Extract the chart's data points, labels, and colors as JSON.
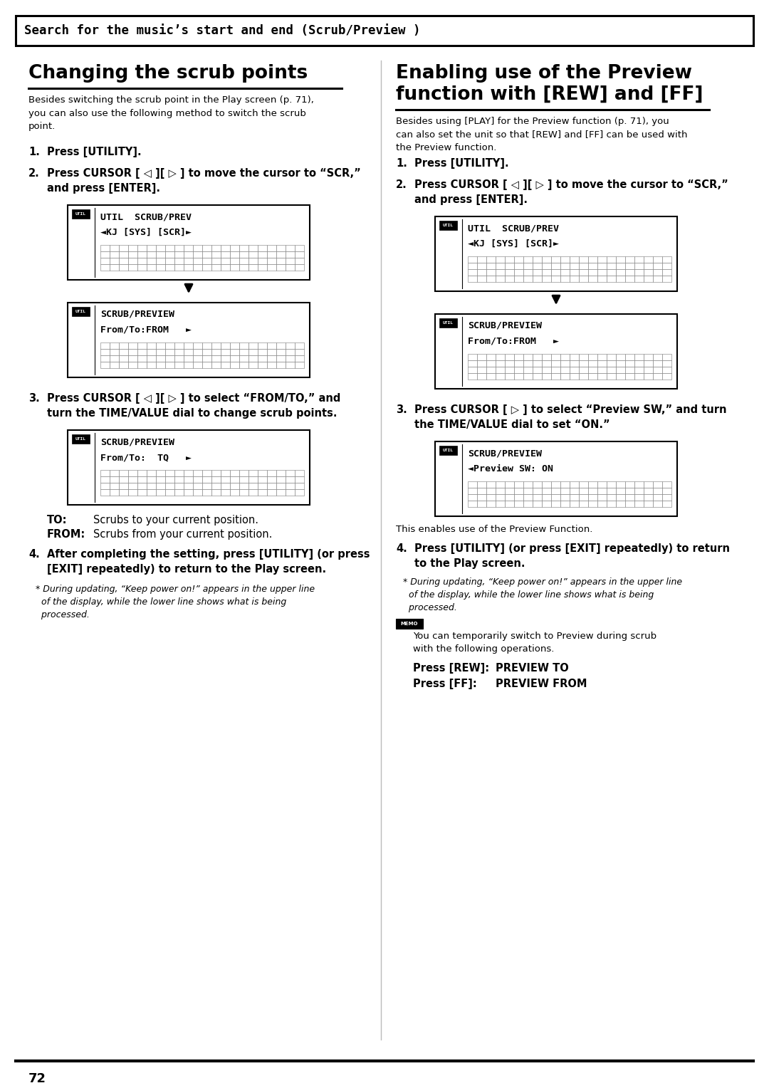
{
  "page_bg": "#ffffff",
  "header_text": "Search for the music’s start and end (Scrub/Preview )",
  "left_title": "Changing the scrub points",
  "right_title_l1": "Enabling use of the Preview",
  "right_title_l2": "function with [REW] and [FF]",
  "left_intro": "Besides switching the scrub point in the Play screen (p. 71),\nyou can also use the following method to switch the scrub\npoint.",
  "right_intro": "Besides using [PLAY] for the Preview function (p. 71), you\ncan also set the unit so that [REW] and [FF] can be used with\nthe Preview function.",
  "page_number": "72",
  "to_desc": "Scrubs to your current position.",
  "from_desc": "Scrubs from your current position.",
  "right_enables": "This enables use of the Preview Function.",
  "memo_text": "You can temporarily switch to Preview during scrub\nwith the following operations.",
  "memo_rew": "Press [REW]:",
  "memo_rew_val": "PREVIEW TO",
  "memo_ff": "Press [FF]:",
  "memo_ff_val": "PREVIEW FROM"
}
